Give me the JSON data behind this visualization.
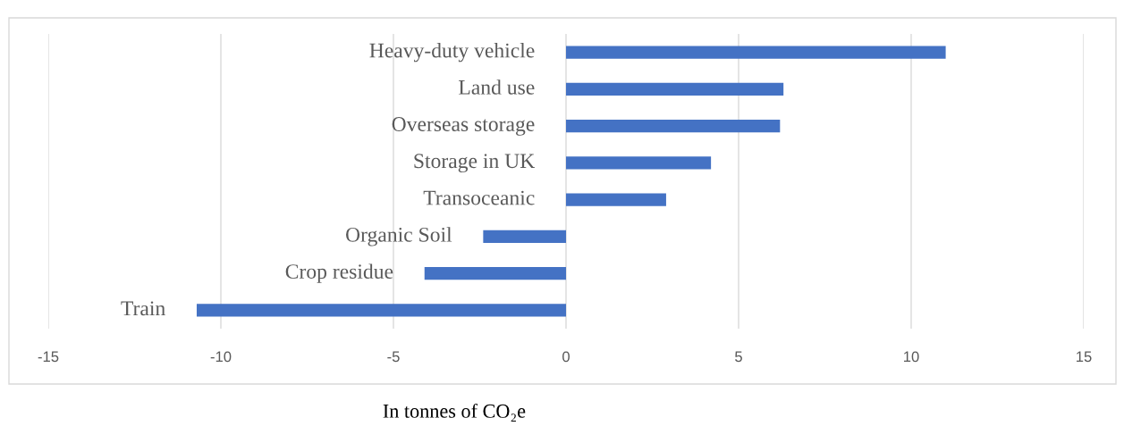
{
  "chart_data": {
    "type": "bar",
    "orientation": "horizontal",
    "xlabel": "In tonnes of CO₂e",
    "categories": [
      "Heavy-duty vehicle",
      "Land use",
      "Overseas storage",
      "Storage in UK",
      "Transoceanic",
      "Organic Soil",
      "Crop residue",
      "Train"
    ],
    "values": [
      11.0,
      6.3,
      6.2,
      4.2,
      2.9,
      -2.4,
      -4.1,
      -10.7
    ],
    "color": "#4472c4",
    "xlim": [
      -15,
      15
    ],
    "xticks": [
      -15,
      -10,
      -5,
      0,
      5,
      10,
      15
    ],
    "grid": "x",
    "legend": false
  }
}
